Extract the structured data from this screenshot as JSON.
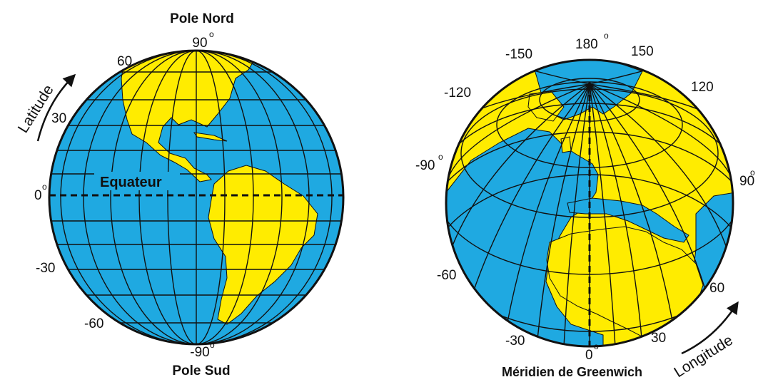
{
  "left_globe": {
    "title_top": "Pole Nord",
    "title_bottom": "Pole Sud",
    "equator_label": "Equateur",
    "axis_label": "Latitude",
    "lat_labels": {
      "n90": "90",
      "n60": "60",
      "n30": "30",
      "zero": "0",
      "s30": "-30",
      "s60": "-60",
      "s90": "-90"
    },
    "degree_mark": "o"
  },
  "right_globe": {
    "meridian_label": "Méridien de Greenwich",
    "axis_label": "Longitude",
    "lon_labels": {
      "w150": "-150",
      "e180": "180",
      "e150": "150",
      "w120": "-120",
      "e120": "120",
      "w90": "-90",
      "e90": "90",
      "w60": "-60",
      "e60": "60",
      "w30": "-30",
      "e30": "30",
      "zero": "0"
    },
    "degree_mark": "o"
  },
  "colors": {
    "ocean": "#1fa9e1",
    "land": "#ffec00",
    "grid": "#111111",
    "background": "#ffffff"
  }
}
